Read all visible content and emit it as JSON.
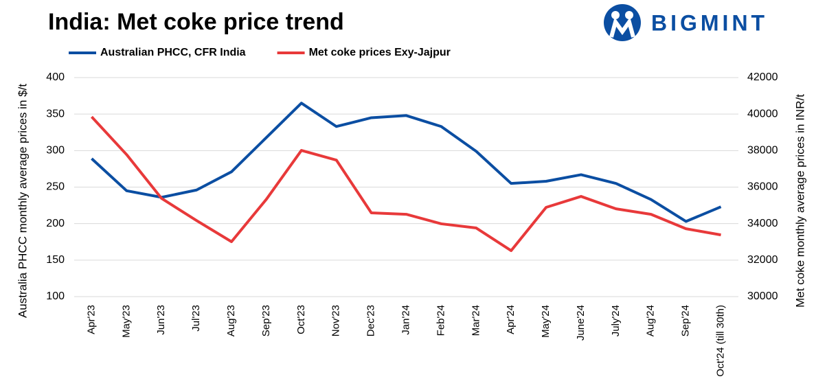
{
  "logo": "BIGMINT",
  "chart_data": {
    "type": "line",
    "title": "India: Met coke price trend",
    "categories": [
      "Apr'23",
      "May'23",
      "Jun'23",
      "Jul'23",
      "Aug'23",
      "Sep'23",
      "Oct'23",
      "Nov'23",
      "Dec'23",
      "Jan'24",
      "Feb'24",
      "Mar'24",
      "Apr'24",
      "May'24",
      "June'24",
      "July'24",
      "Aug'24",
      "Sep'24",
      "Oct'24 (till 30th)"
    ],
    "y_label": "Australia PHCC monthly average prices in $/t",
    "y2_label": "Met coke monthly average prices in INR/t",
    "ylim": [
      100,
      400
    ],
    "yticks": [
      100,
      150,
      200,
      250,
      300,
      350,
      400
    ],
    "y2lim": [
      30000,
      42000
    ],
    "y2ticks": [
      30000,
      32000,
      34000,
      36000,
      38000,
      40000,
      42000
    ],
    "grid": true,
    "legend": "top",
    "series": [
      {
        "name": "Australian PHCC, CFR India",
        "color": "#0b4ea2",
        "values": [
          289,
          245,
          236,
          246,
          271,
          318,
          365,
          333,
          345,
          348,
          333,
          299,
          255,
          258,
          267,
          255,
          233,
          203,
          223
        ]
      },
      {
        "name": "Met coke prices Exy-Jajpur",
        "color": "#e8393a",
        "axis": "y2",
        "values": [
          39850,
          37780,
          35380,
          34170,
          33010,
          35340,
          38010,
          37480,
          34590,
          34510,
          33990,
          33760,
          32520,
          34890,
          35490,
          34810,
          34510,
          33720,
          33380
        ]
      }
    ]
  }
}
